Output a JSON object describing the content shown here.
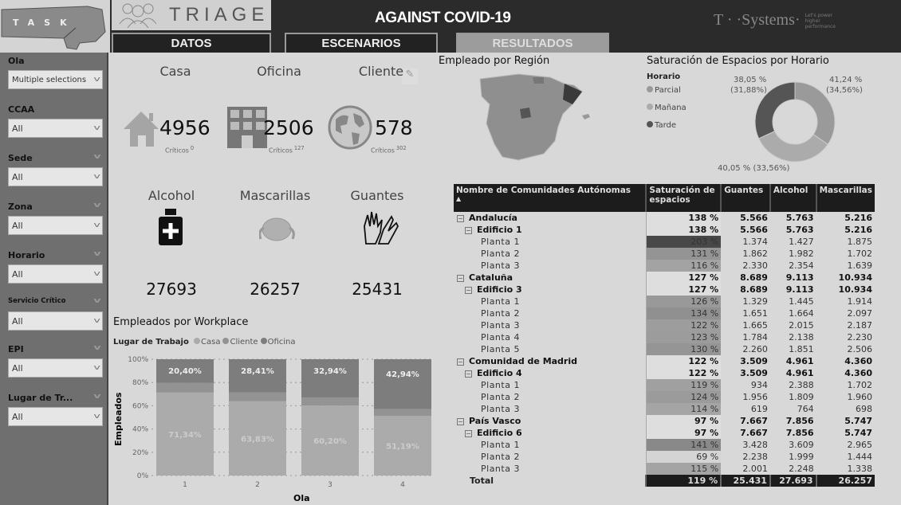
{
  "header": {
    "brand_fist": "TASK",
    "brand": "TRIAGE",
    "title": "AGAINST COVID-19",
    "partner": "T · ·Systems·",
    "partner_tagline": "Let's power higher performance"
  },
  "tabs": [
    {
      "label": "DATOS",
      "active": false
    },
    {
      "label": "ESCENARIOS",
      "active": false
    },
    {
      "label": "RESULTADOS",
      "active": true
    }
  ],
  "filters": [
    {
      "label": "Ola",
      "value": "Multiple selections"
    },
    {
      "label": "CCAA",
      "value": "All"
    },
    {
      "label": "Sede",
      "value": "All"
    },
    {
      "label": "Zona",
      "value": "All"
    },
    {
      "label": "Horario",
      "value": "All"
    },
    {
      "label": "Servicio Crítico",
      "value": "All"
    },
    {
      "label": "EPI",
      "value": "All"
    },
    {
      "label": "Lugar de Tr...",
      "value": "All"
    }
  ],
  "kpis": [
    {
      "title": "Casa",
      "value": "4956",
      "crit_label": "Críticos",
      "crit": "0",
      "icon": "house-icon"
    },
    {
      "title": "Oficina",
      "value": "2506",
      "crit_label": "Críticos",
      "crit": "127",
      "icon": "building-icon"
    },
    {
      "title": "Cliente",
      "value": "578",
      "crit_label": "Críticos",
      "crit": "302",
      "icon": "globe-icon"
    }
  ],
  "supplies": [
    {
      "title": "Alcohol",
      "value": "27693",
      "icon": "sanitizer-bottle-icon"
    },
    {
      "title": "Mascarillas",
      "value": "26257",
      "icon": "face-mask-icon"
    },
    {
      "title": "Guantes",
      "value": "25431",
      "icon": "gloves-icon"
    }
  ],
  "map": {
    "title": "Empleado por Región"
  },
  "colors": {
    "casa": "#ababab",
    "cliente": "#939393",
    "oficina": "#7d7d7d",
    "parcial": "#9a9a9a",
    "manana": "#ababab",
    "tarde": "#555555"
  },
  "chart_data": [
    {
      "type": "bar",
      "stacked": "100%",
      "title": "Empleados por Workplace",
      "legend_title": "Lugar de Trabajo",
      "legend_position": "top-left",
      "xlabel": "Ola",
      "ylabel": "Empleados",
      "categories": [
        "1",
        "2",
        "3",
        "4"
      ],
      "yticks": [
        "0%",
        "20%",
        "40%",
        "60%",
        "80%",
        "100%"
      ],
      "ylim": [
        0,
        100
      ],
      "series": [
        {
          "name": "Casa",
          "values": [
            71.34,
            63.83,
            60.2,
            51.19
          ],
          "labels": [
            "71,34%",
            "63,83%",
            "60,20%",
            "51,19%"
          ]
        },
        {
          "name": "Cliente",
          "values": [
            8.26,
            7.76,
            6.86,
            5.87
          ]
        },
        {
          "name": "Oficina",
          "values": [
            20.4,
            28.41,
            32.94,
            42.94
          ],
          "labels": [
            "20,40%",
            "28,41%",
            "32,94%",
            "42,94%"
          ]
        }
      ]
    },
    {
      "type": "pie",
      "donut": true,
      "title": "Saturación de Espacios por Horario",
      "legend_title": "Horario",
      "legend_position": "left",
      "slices": [
        {
          "name": "Parcial",
          "value": 41.24,
          "share": 34.56,
          "label": "41,24 %",
          "sublabel": "(34,56%)"
        },
        {
          "name": "Mañana",
          "value": 40.05,
          "share": 33.56,
          "label": "40,05 % (33,56%)"
        },
        {
          "name": "Tarde",
          "value": 38.05,
          "share": 31.88,
          "label": "38,05 %",
          "sublabel": "(31,88%)"
        }
      ]
    }
  ],
  "table": {
    "columns": [
      "Nombre de Comunidades Autónomas",
      "Saturación de espacios",
      "Guantes",
      "Alcohol",
      "Mascarillas"
    ],
    "rows": [
      {
        "lvl": 0,
        "name": "Andalucía",
        "sat": "138 %",
        "s": 138,
        "g": "5.566",
        "a": "5.763",
        "m": "5.216"
      },
      {
        "lvl": 1,
        "name": "Edificio 1",
        "sat": "138 %",
        "s": 138,
        "g": "5.566",
        "a": "5.763",
        "m": "5.216"
      },
      {
        "lvl": 2,
        "name": "Planta 1",
        "sat": "203 %",
        "s": 203,
        "g": "1.374",
        "a": "1.427",
        "m": "1.875"
      },
      {
        "lvl": 2,
        "name": "Planta 2",
        "sat": "131 %",
        "s": 131,
        "g": "1.862",
        "a": "1.982",
        "m": "1.702"
      },
      {
        "lvl": 2,
        "name": "Planta 3",
        "sat": "116 %",
        "s": 116,
        "g": "2.330",
        "a": "2.354",
        "m": "1.639"
      },
      {
        "lvl": 0,
        "name": "Cataluña",
        "sat": "127 %",
        "s": 127,
        "g": "8.689",
        "a": "9.113",
        "m": "10.934"
      },
      {
        "lvl": 1,
        "name": "Edificio 3",
        "sat": "127 %",
        "s": 127,
        "g": "8.689",
        "a": "9.113",
        "m": "10.934"
      },
      {
        "lvl": 2,
        "name": "Planta 1",
        "sat": "126 %",
        "s": 126,
        "g": "1.329",
        "a": "1.445",
        "m": "1.914"
      },
      {
        "lvl": 2,
        "name": "Planta 2",
        "sat": "134 %",
        "s": 134,
        "g": "1.651",
        "a": "1.664",
        "m": "2.097"
      },
      {
        "lvl": 2,
        "name": "Planta 3",
        "sat": "122 %",
        "s": 122,
        "g": "1.665",
        "a": "2.015",
        "m": "2.187"
      },
      {
        "lvl": 2,
        "name": "Planta 4",
        "sat": "123 %",
        "s": 123,
        "g": "1.784",
        "a": "2.138",
        "m": "2.230"
      },
      {
        "lvl": 2,
        "name": "Planta 5",
        "sat": "130 %",
        "s": 130,
        "g": "2.260",
        "a": "1.851",
        "m": "2.506"
      },
      {
        "lvl": 0,
        "name": "Comunidad de Madrid",
        "sat": "122 %",
        "s": 122,
        "g": "3.509",
        "a": "4.961",
        "m": "4.360"
      },
      {
        "lvl": 1,
        "name": "Edificio 4",
        "sat": "122 %",
        "s": 122,
        "g": "3.509",
        "a": "4.961",
        "m": "4.360"
      },
      {
        "lvl": 2,
        "name": "Planta 1",
        "sat": "119 %",
        "s": 119,
        "g": "934",
        "a": "2.388",
        "m": "1.702"
      },
      {
        "lvl": 2,
        "name": "Planta 2",
        "sat": "124 %",
        "s": 124,
        "g": "1.956",
        "a": "1.809",
        "m": "1.960"
      },
      {
        "lvl": 2,
        "name": "Planta 3",
        "sat": "114 %",
        "s": 114,
        "g": "619",
        "a": "764",
        "m": "698"
      },
      {
        "lvl": 0,
        "name": "País Vasco",
        "sat": "97 %",
        "s": 97,
        "g": "7.667",
        "a": "7.856",
        "m": "5.747"
      },
      {
        "lvl": 1,
        "name": "Edificio 6",
        "sat": "97 %",
        "s": 97,
        "g": "7.667",
        "a": "7.856",
        "m": "5.747"
      },
      {
        "lvl": 2,
        "name": "Planta 1",
        "sat": "141 %",
        "s": 141,
        "g": "3.428",
        "a": "3.609",
        "m": "2.965"
      },
      {
        "lvl": 2,
        "name": "Planta 2",
        "sat": "69 %",
        "s": 69,
        "g": "2.238",
        "a": "1.999",
        "m": "1.444"
      },
      {
        "lvl": 2,
        "name": "Planta 3",
        "sat": "115 %",
        "s": 115,
        "g": "2.001",
        "a": "2.248",
        "m": "1.338"
      }
    ],
    "total": {
      "name": "Total",
      "sat": "119 %",
      "g": "25.431",
      "a": "27.693",
      "m": "26.257"
    }
  }
}
